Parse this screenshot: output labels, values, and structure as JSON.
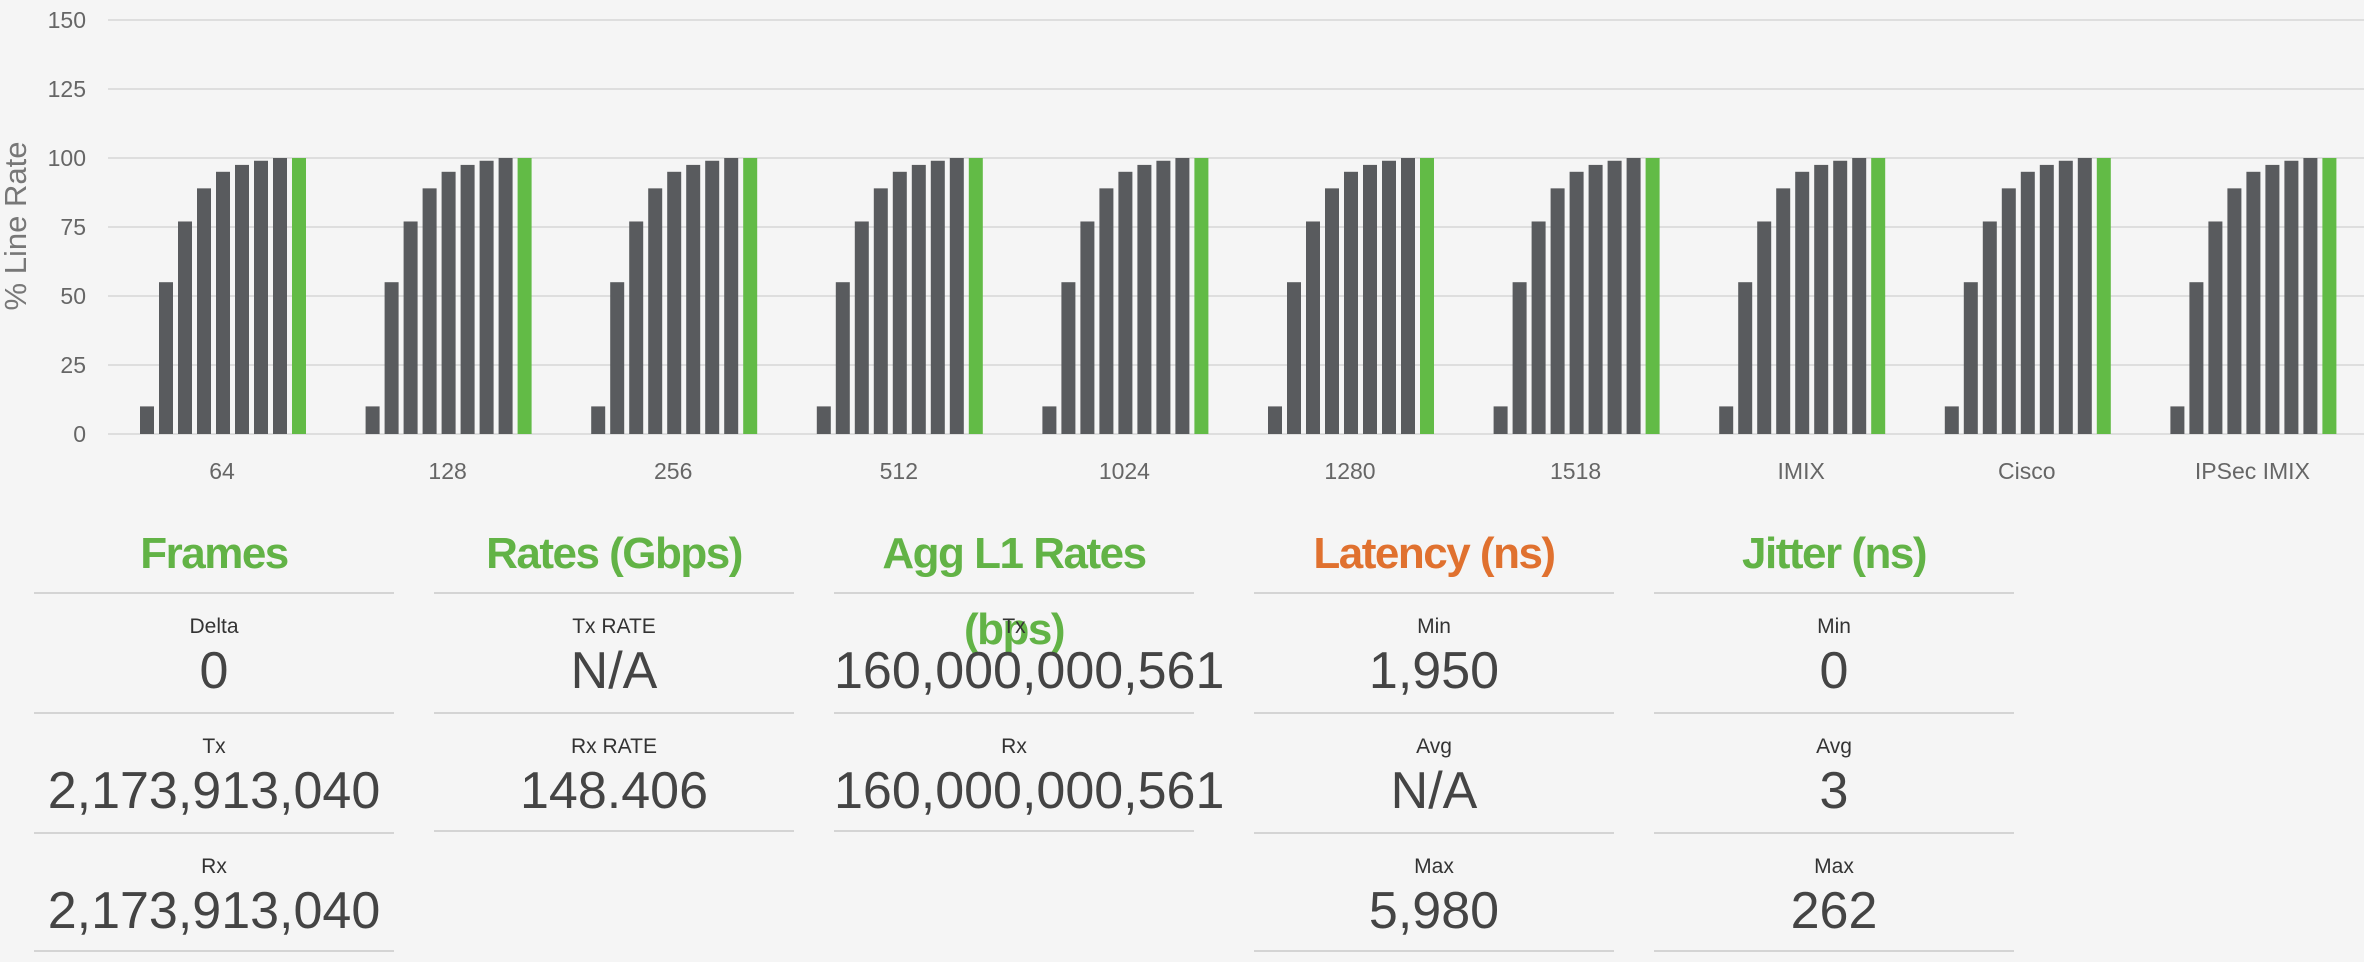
{
  "colors": {
    "bar": "#595b5e",
    "bar_highlight": "#62bb46",
    "title_green": "#62b346",
    "title_orange": "#e0712f",
    "grid": "#d6d6d6"
  },
  "chart_data": {
    "type": "bar",
    "ylabel": "% Line Rate",
    "ylim": [
      0,
      150
    ],
    "yticks": [
      0,
      25,
      50,
      75,
      100,
      125,
      150
    ],
    "grid": true,
    "legend": "none",
    "categories": [
      "64",
      "128",
      "256",
      "512",
      "1024",
      "1280",
      "1518",
      "IMIX",
      "Cisco",
      "IPSec IMIX"
    ],
    "series": [
      {
        "values": [
          10,
          10,
          10,
          10,
          10,
          10,
          10,
          10,
          10,
          10
        ]
      },
      {
        "values": [
          55,
          55,
          55,
          55,
          55,
          55,
          55,
          55,
          55,
          55
        ]
      },
      {
        "values": [
          77,
          77,
          77,
          77,
          77,
          77,
          77,
          77,
          77,
          77
        ]
      },
      {
        "values": [
          89,
          89,
          89,
          89,
          89,
          89,
          89,
          89,
          89,
          89
        ]
      },
      {
        "values": [
          95,
          95,
          95,
          95,
          95,
          95,
          95,
          95,
          95,
          95
        ]
      },
      {
        "values": [
          97.5,
          97.5,
          97.5,
          97.5,
          97.5,
          97.5,
          97.5,
          97.5,
          97.5,
          97.5
        ]
      },
      {
        "values": [
          99,
          99,
          99,
          99,
          99,
          99,
          99,
          99,
          99,
          99
        ]
      },
      {
        "values": [
          100,
          100,
          100,
          100,
          100,
          100,
          100,
          100,
          100,
          100
        ]
      },
      {
        "values": [
          100,
          100,
          100,
          100,
          100,
          100,
          100,
          100,
          100,
          100
        ],
        "highlight": true
      }
    ]
  },
  "panels": [
    {
      "title": "Frames",
      "color": "green",
      "metrics": [
        {
          "label": "Delta",
          "value": "0"
        },
        {
          "label": "Tx",
          "value": "2,173,913,040"
        },
        {
          "label": "Rx",
          "value": "2,173,913,040"
        }
      ]
    },
    {
      "title": "Rates (Gbps)",
      "color": "green",
      "metrics": [
        {
          "label": "Tx RATE",
          "value": "N/A"
        },
        {
          "label": "Rx RATE",
          "value": "148.406"
        }
      ]
    },
    {
      "title": "Agg L1 Rates (bps)",
      "color": "green",
      "metrics": [
        {
          "label": "Tx",
          "value": "160,000,000,561"
        },
        {
          "label": "Rx",
          "value": "160,000,000,561"
        }
      ]
    },
    {
      "title": "Latency (ns)",
      "color": "orange",
      "metrics": [
        {
          "label": "Min",
          "value": "1,950"
        },
        {
          "label": "Avg",
          "value": "N/A"
        },
        {
          "label": "Max",
          "value": "5,980"
        }
      ]
    },
    {
      "title": "Jitter (ns)",
      "color": "green",
      "metrics": [
        {
          "label": "Min",
          "value": "0"
        },
        {
          "label": "Avg",
          "value": "3"
        },
        {
          "label": "Max",
          "value": "262"
        }
      ]
    }
  ]
}
